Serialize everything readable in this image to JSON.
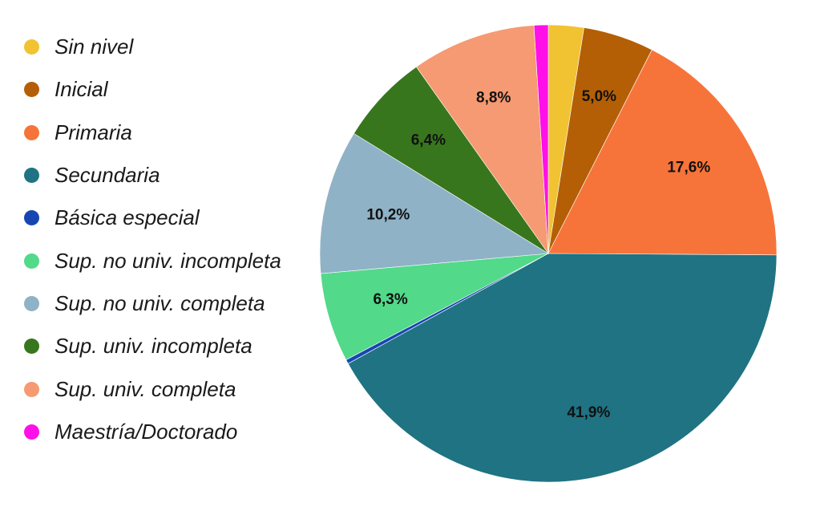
{
  "chart_data": {
    "type": "pie",
    "start_angle_deg": 0,
    "direction": "clockwise",
    "legend_position": "left",
    "slices": [
      {
        "name": "Sin nivel",
        "value": 2.5,
        "label": "",
        "color": "#f1c232"
      },
      {
        "name": "Inicial",
        "value": 5.0,
        "label": "5,0%",
        "color": "#b45f06"
      },
      {
        "name": "Primaria",
        "value": 17.6,
        "label": "17,6%",
        "color": "#f6743a"
      },
      {
        "name": "Secundaria",
        "value": 41.9,
        "label": "41,9%",
        "color": "#1f7382"
      },
      {
        "name": "Básica especial",
        "value": 0.3,
        "label": "",
        "color": "#1746b3"
      },
      {
        "name": "Sup. no univ. incompleta",
        "value": 6.3,
        "label": "6,3%",
        "color": "#52d98a"
      },
      {
        "name": "Sup. no univ. completa",
        "value": 10.2,
        "label": "10,2%",
        "color": "#8fb2c6"
      },
      {
        "name": "Sup. univ. incompleta",
        "value": 6.4,
        "label": "6,4%",
        "color": "#38761d"
      },
      {
        "name": "Sup. univ. completa",
        "value": 8.8,
        "label": "8,8%",
        "color": "#f59a72"
      },
      {
        "name": "Maestría/Doctorado",
        "value": 1.0,
        "label": "",
        "color": "#ff10e8"
      }
    ]
  }
}
